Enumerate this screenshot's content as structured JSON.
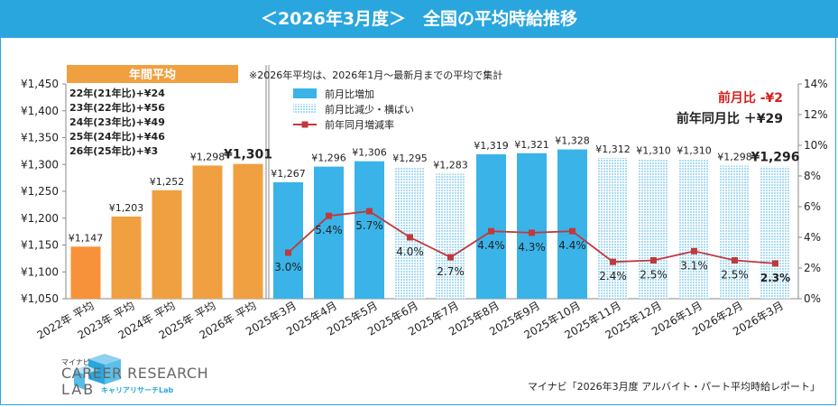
{
  "title": "＜2026年3月度＞　全国の平均時給推移",
  "source": "マイナビ「2026年3月度 アルバイト・パート平均時給レポート」",
  "logo": {
    "mynavi": "マイナビ",
    "line1": "CAREER RESEARCH",
    "line2": "LAB",
    "kana": "キャリアリサーチLab"
  },
  "colors": {
    "title_bg": "#2aa6df",
    "annual_bar": "#f0a040",
    "annual_bar_first": "#f7923a",
    "increase_bar": "#3ab3e8",
    "decrease_bar": "#a9dcf4",
    "line": "#c0393b",
    "accent_red": "#d4201c"
  },
  "chart_data": {
    "type": "bar",
    "annual_header": "年間平均",
    "note": "※2026年平均は、2026年1月～最新月までの平均で集計",
    "annual_changes": [
      "22年(21年比)+¥24",
      "23年(22年比)+¥56",
      "24年(23年比)+¥49",
      "25年(24年比)+¥46",
      "26年(25年比)+¥3"
    ],
    "categories": [
      "2022年 平均",
      "2023年 平均",
      "2024年 平均",
      "2025年 平均",
      "2026年 平均",
      "2025年3月",
      "2025年4月",
      "2025年5月",
      "2025年6月",
      "2025年7月",
      "2025年8月",
      "2025年9月",
      "2025年10月",
      "2025年11月",
      "2025年12月",
      "2026年1月",
      "2026年2月",
      "2026年3月"
    ],
    "value_labels": [
      "¥1,147",
      "¥1,203",
      "¥1,252",
      "¥1,298",
      "¥1,301",
      "¥1,267",
      "¥1,296",
      "¥1,306",
      "¥1,295",
      "¥1,283",
      "¥1,319",
      "¥1,321",
      "¥1,328",
      "¥1,312",
      "¥1,310",
      "¥1,310",
      "¥1,298",
      "¥1,296"
    ],
    "values": [
      1147,
      1203,
      1252,
      1298,
      1301,
      1267,
      1296,
      1306,
      1295,
      1283,
      1319,
      1321,
      1328,
      1312,
      1310,
      1310,
      1298,
      1296
    ],
    "bar_kind": [
      "annual",
      "annual",
      "annual",
      "annual",
      "annual",
      "increase",
      "increase",
      "increase",
      "decrease",
      "decrease",
      "increase",
      "increase",
      "increase",
      "decrease",
      "decrease",
      "decrease",
      "decrease",
      "decrease"
    ],
    "yoy_labels": [
      "3.0%",
      "5.4%",
      "5.7%",
      "4.0%",
      "2.7%",
      "4.4%",
      "4.3%",
      "4.4%",
      "2.4%",
      "2.5%",
      "3.1%",
      "2.5%",
      "2.3%"
    ],
    "yoy_values": [
      3.0,
      5.4,
      5.7,
      4.0,
      2.7,
      4.4,
      4.3,
      4.4,
      2.4,
      2.5,
      3.1,
      2.5,
      2.3
    ],
    "ylim": [
      1050,
      1450
    ],
    "y_ticks": [
      "¥1,050",
      "¥1,100",
      "¥1,150",
      "¥1,200",
      "¥1,250",
      "¥1,300",
      "¥1,350",
      "¥1,400",
      "¥1,450"
    ],
    "y2lim": [
      0,
      14
    ],
    "y2_ticks": [
      "0%",
      "2%",
      "4%",
      "6%",
      "8%",
      "10%",
      "12%",
      "14%"
    ],
    "legend": [
      "前月比増加",
      "前月比減少・横ばい",
      "前年同月増減率"
    ],
    "summary_mom": "前月比 -¥2",
    "summary_yoy": "前年同月比 ＋¥29"
  }
}
